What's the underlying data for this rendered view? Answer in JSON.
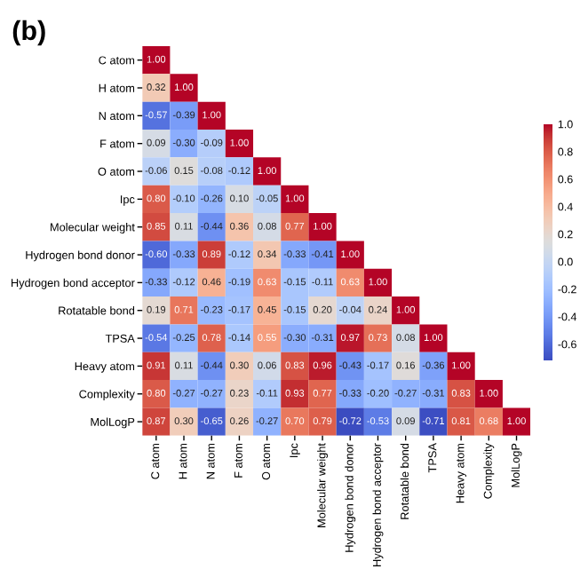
{
  "chart_data": {
    "type": "heatmap",
    "title": "(b)",
    "categories": [
      "C atom",
      "H atom",
      "N atom",
      "F atom",
      "O atom",
      "Ipc",
      "Molecular weight",
      "Hydrogen bond donor",
      "Hydrogen bond acceptor",
      "Rotatable bond",
      "TPSA",
      "Heavy atom",
      "Complexity",
      "MolLogP"
    ],
    "y_categories": [
      "C atom",
      "H atom",
      "N atom",
      "F atom",
      "O atom",
      "Ipc",
      "Molecular weight",
      "Hydrogen bond donor",
      "Hydrogen bond acceptor",
      "Rotatable bond",
      "TPSA",
      "Heavy atom",
      "Complexity",
      "MolLogP"
    ],
    "cells": [
      [
        1.0,
        null,
        null,
        null,
        null,
        null,
        null,
        null,
        null,
        null,
        null,
        null,
        null,
        null
      ],
      [
        0.32,
        1.0,
        null,
        null,
        null,
        null,
        null,
        null,
        null,
        null,
        null,
        null,
        null,
        null
      ],
      [
        -0.57,
        -0.39,
        1.0,
        null,
        null,
        null,
        null,
        null,
        null,
        null,
        null,
        null,
        null,
        null
      ],
      [
        0.09,
        -0.3,
        -0.09,
        1.0,
        null,
        null,
        null,
        null,
        null,
        null,
        null,
        null,
        null,
        null
      ],
      [
        -0.06,
        0.15,
        -0.08,
        -0.12,
        1.0,
        null,
        null,
        null,
        null,
        null,
        null,
        null,
        null,
        null
      ],
      [
        0.8,
        -0.1,
        -0.26,
        0.1,
        -0.05,
        1.0,
        null,
        null,
        null,
        null,
        null,
        null,
        null,
        null
      ],
      [
        0.85,
        0.11,
        -0.44,
        0.36,
        0.08,
        0.77,
        1.0,
        null,
        null,
        null,
        null,
        null,
        null,
        null
      ],
      [
        -0.6,
        -0.33,
        0.89,
        -0.12,
        0.34,
        -0.33,
        -0.41,
        1.0,
        null,
        null,
        null,
        null,
        null,
        null
      ],
      [
        -0.33,
        -0.12,
        0.46,
        -0.19,
        0.63,
        -0.15,
        -0.11,
        0.63,
        1.0,
        null,
        null,
        null,
        null,
        null
      ],
      [
        0.19,
        0.71,
        -0.23,
        -0.17,
        0.45,
        -0.15,
        0.2,
        -0.04,
        0.24,
        1.0,
        null,
        null,
        null,
        null
      ],
      [
        -0.54,
        -0.25,
        0.78,
        -0.14,
        0.55,
        -0.3,
        -0.31,
        0.97,
        0.73,
        0.08,
        1.0,
        null,
        null,
        null
      ],
      [
        0.91,
        0.11,
        -0.44,
        0.3,
        0.06,
        0.83,
        0.96,
        -0.43,
        -0.17,
        0.16,
        -0.36,
        1.0,
        null,
        null
      ],
      [
        0.8,
        -0.27,
        -0.27,
        0.23,
        -0.11,
        0.93,
        0.77,
        -0.33,
        -0.2,
        -0.27,
        -0.31,
        0.83,
        1.0,
        null
      ],
      [
        0.87,
        0.3,
        -0.65,
        0.26,
        -0.27,
        0.7,
        0.79,
        -0.72,
        -0.53,
        0.09,
        -0.71,
        0.81,
        0.68,
        1.0
      ]
    ],
    "clim": [
      -0.72,
      1.0
    ],
    "cticks": [
      -0.6,
      -0.4,
      -0.2,
      {
        "value": 0,
        "label": "0.0"
      },
      0.2,
      0.4,
      0.6,
      0.8,
      {
        "value": 1,
        "label": "1.0"
      }
    ],
    "cell_labels": [
      [
        "1.00",
        null,
        null,
        null,
        null,
        null,
        null,
        null,
        null,
        null,
        null,
        null,
        null,
        null
      ],
      [
        "0.32",
        "1.00",
        null,
        null,
        null,
        null,
        null,
        null,
        null,
        null,
        null,
        null,
        null,
        null
      ],
      [
        "-0.57",
        "-0.39",
        "1.00",
        null,
        null,
        null,
        null,
        null,
        null,
        null,
        null,
        null,
        null,
        null
      ],
      [
        "0.09",
        "-0.30",
        "-0.09",
        "1.00",
        null,
        null,
        null,
        null,
        null,
        null,
        null,
        null,
        null,
        null
      ],
      [
        "-0.06",
        "0.15",
        "-0.08",
        "-0.12",
        "1.00",
        null,
        null,
        null,
        null,
        null,
        null,
        null,
        null,
        null
      ],
      [
        "0.80",
        "-0.10",
        "-0.26",
        "0.10",
        "-0.05",
        "1.00",
        null,
        null,
        null,
        null,
        null,
        null,
        null,
        null
      ],
      [
        "0.85",
        "0.11",
        "-0.44",
        "0.36",
        "0.08",
        "0.77",
        "1.00",
        null,
        null,
        null,
        null,
        null,
        null,
        null
      ],
      [
        "-0.60",
        "-0.33",
        "0.89",
        "-0.12",
        "0.34",
        "-0.33",
        "-0.41",
        "1.00",
        null,
        null,
        null,
        null,
        null,
        null
      ],
      [
        "-0.33",
        "-0.12",
        "0.46",
        "-0.19",
        "0.63",
        "-0.15",
        "-0.11",
        "0.63",
        "1.00",
        null,
        null,
        null,
        null,
        null
      ],
      [
        "0.19",
        "0.71",
        "-0.23",
        "-0.17",
        "0.45",
        "-0.15",
        "0.20",
        "-0.04",
        "0.24",
        "1.00",
        null,
        null,
        null,
        null
      ],
      [
        "-0.54",
        "-0.25",
        "0.78",
        "-0.14",
        "0.55",
        "-0.30",
        "-0.31",
        "0.97",
        "0.73",
        "0.08",
        "1.00",
        null,
        null,
        null
      ],
      [
        "0.91",
        "0.11",
        "-0.44",
        "0.30",
        "0.06",
        "0.83",
        "0.96",
        "-0.43",
        "-0.17",
        "0.16",
        "-0.36",
        "1.00",
        null,
        null
      ],
      [
        "0.80",
        "-0.27",
        "-0.27",
        "0.23",
        "-0.11",
        "0.93",
        "0.77",
        "-0.33",
        "-0.20",
        "-0.27",
        "-0.31",
        "0.83",
        "1.00",
        null
      ],
      [
        "0.87",
        "0.30",
        "-0.65",
        "0.26",
        "-0.27",
        "0.70",
        "0.79",
        "-0.72",
        "-0.53",
        "0.09",
        "-0.71",
        "0.81",
        "0.68",
        "1.00"
      ]
    ]
  }
}
